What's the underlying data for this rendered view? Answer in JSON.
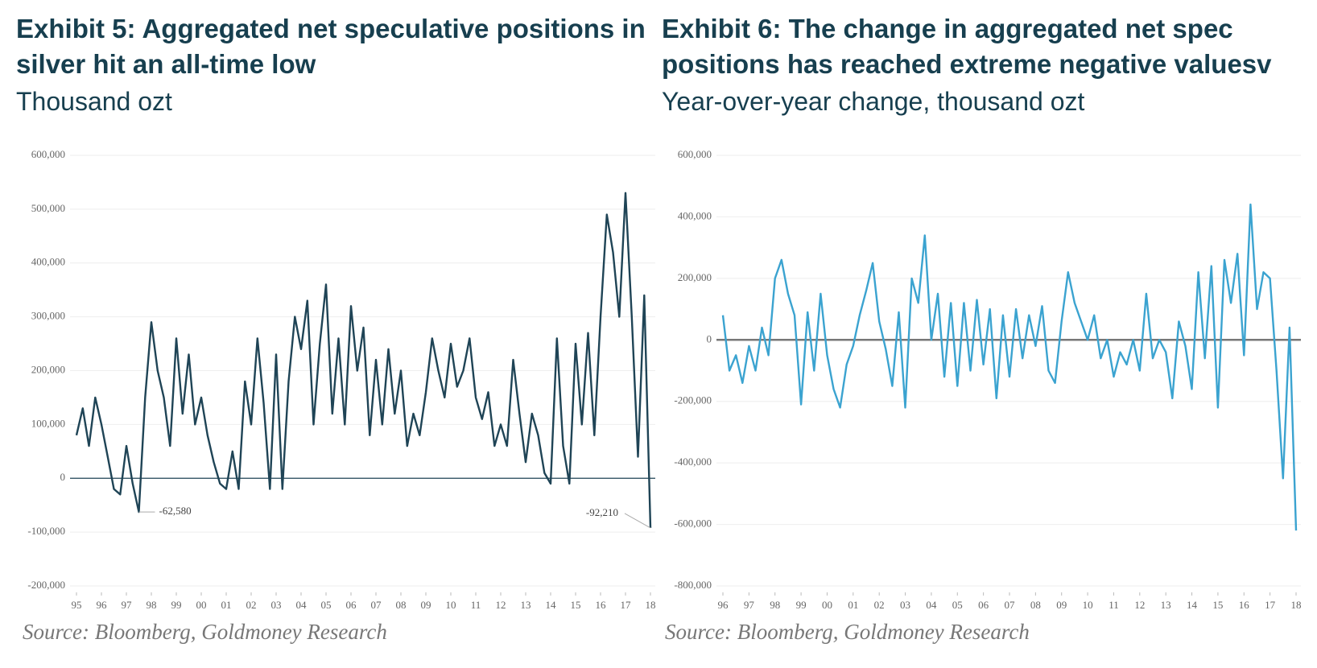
{
  "chart_data": [
    {
      "type": "line",
      "title": "Exhibit 5: Aggregated net speculative positions in silver hit an all-time low",
      "subtitle": "Thousand ozt",
      "source": "Source: Bloomberg, Goldmoney Research",
      "x": [
        1995,
        1995.25,
        1995.5,
        1995.75,
        1996,
        1996.25,
        1996.5,
        1996.75,
        1997,
        1997.25,
        1997.5,
        1997.75,
        1998,
        1998.25,
        1998.5,
        1998.75,
        1999,
        1999.25,
        1999.5,
        1999.75,
        2000,
        2000.25,
        2000.5,
        2000.75,
        2001,
        2001.25,
        2001.5,
        2001.75,
        2002,
        2002.25,
        2002.5,
        2002.75,
        2003,
        2003.25,
        2003.5,
        2003.75,
        2004,
        2004.25,
        2004.5,
        2004.75,
        2005,
        2005.25,
        2005.5,
        2005.75,
        2006,
        2006.25,
        2006.5,
        2006.75,
        2007,
        2007.25,
        2007.5,
        2007.75,
        2008,
        2008.25,
        2008.5,
        2008.75,
        2009,
        2009.25,
        2009.5,
        2009.75,
        2010,
        2010.25,
        2010.5,
        2010.75,
        2011,
        2011.25,
        2011.5,
        2011.75,
        2012,
        2012.25,
        2012.5,
        2012.75,
        2013,
        2013.25,
        2013.5,
        2013.75,
        2014,
        2014.25,
        2014.5,
        2014.75,
        2015,
        2015.25,
        2015.5,
        2015.75,
        2016,
        2016.25,
        2016.5,
        2016.75,
        2017,
        2017.25,
        2017.5,
        2017.75,
        2018
      ],
      "series": [
        {
          "color": "#1f4456",
          "values": [
            80000,
            130000,
            60000,
            150000,
            100000,
            40000,
            -20000,
            -30000,
            60000,
            -10000,
            -62580,
            150000,
            290000,
            200000,
            150000,
            60000,
            260000,
            120000,
            230000,
            100000,
            150000,
            80000,
            30000,
            -10000,
            -20000,
            50000,
            -20000,
            180000,
            100000,
            260000,
            140000,
            -20000,
            230000,
            -20000,
            180000,
            300000,
            240000,
            330000,
            100000,
            250000,
            360000,
            120000,
            260000,
            100000,
            320000,
            200000,
            280000,
            80000,
            220000,
            100000,
            240000,
            120000,
            200000,
            60000,
            120000,
            80000,
            160000,
            260000,
            200000,
            150000,
            250000,
            170000,
            200000,
            260000,
            150000,
            110000,
            160000,
            60000,
            100000,
            60000,
            220000,
            120000,
            30000,
            120000,
            80000,
            10000,
            -10000,
            260000,
            60000,
            -10000,
            250000,
            100000,
            270000,
            80000,
            300000,
            490000,
            420000,
            300000,
            530000,
            300000,
            40000,
            340000,
            -92210
          ]
        }
      ],
      "annotations": [
        {
          "label": "-62,580",
          "x": 1997.5,
          "y": -62580
        },
        {
          "label": "-92,210",
          "x": 2018,
          "y": -92210
        }
      ],
      "xlim": [
        1995,
        2018
      ],
      "xticks": [
        {
          "value": 1995,
          "label": "95"
        },
        {
          "value": 1996,
          "label": "96"
        },
        {
          "value": 1997,
          "label": "97"
        },
        {
          "value": 1998,
          "label": "98"
        },
        {
          "value": 1999,
          "label": "99"
        },
        {
          "value": 2000,
          "label": "00"
        },
        {
          "value": 2001,
          "label": "01"
        },
        {
          "value": 2002,
          "label": "02"
        },
        {
          "value": 2003,
          "label": "03"
        },
        {
          "value": 2004,
          "label": "04"
        },
        {
          "value": 2005,
          "label": "05"
        },
        {
          "value": 2006,
          "label": "06"
        },
        {
          "value": 2007,
          "label": "07"
        },
        {
          "value": 2008,
          "label": "08"
        },
        {
          "value": 2009,
          "label": "09"
        },
        {
          "value": 2010,
          "label": "10"
        },
        {
          "value": 2011,
          "label": "11"
        },
        {
          "value": 2012,
          "label": "12"
        },
        {
          "value": 2013,
          "label": "13"
        },
        {
          "value": 2014,
          "label": "14"
        },
        {
          "value": 2015,
          "label": "15"
        },
        {
          "value": 2016,
          "label": "16"
        },
        {
          "value": 2017,
          "label": "17"
        },
        {
          "value": 2018,
          "label": "18"
        }
      ],
      "ylim": [
        -200000,
        600000
      ],
      "yticks": [
        {
          "value": -200000,
          "label": "-200,000"
        },
        {
          "value": -100000,
          "label": "-100,000"
        },
        0,
        {
          "value": 100000,
          "label": "100,000"
        },
        {
          "value": 200000,
          "label": "200,000"
        },
        {
          "value": 300000,
          "label": "300,000"
        },
        {
          "value": 400000,
          "label": "400,000"
        },
        {
          "value": 500000,
          "label": "500,000"
        },
        {
          "value": 600000,
          "label": "600,000"
        }
      ],
      "grid": true
    },
    {
      "type": "line",
      "title": "Exhibit 6: The change in aggregated net spec positions has reached extreme negative valuesv",
      "subtitle": "Year-over-year change, thousand ozt",
      "source": "Source: Bloomberg, Goldmoney Research",
      "x": [
        1996,
        1996.25,
        1996.5,
        1996.75,
        1997,
        1997.25,
        1997.5,
        1997.75,
        1998,
        1998.25,
        1998.5,
        1998.75,
        1999,
        1999.25,
        1999.5,
        1999.75,
        2000,
        2000.25,
        2000.5,
        2000.75,
        2001,
        2001.25,
        2001.5,
        2001.75,
        2002,
        2002.25,
        2002.5,
        2002.75,
        2003,
        2003.25,
        2003.5,
        2003.75,
        2004,
        2004.25,
        2004.5,
        2004.75,
        2005,
        2005.25,
        2005.5,
        2005.75,
        2006,
        2006.25,
        2006.5,
        2006.75,
        2007,
        2007.25,
        2007.5,
        2007.75,
        2008,
        2008.25,
        2008.5,
        2008.75,
        2009,
        2009.25,
        2009.5,
        2009.75,
        2010,
        2010.25,
        2010.5,
        2010.75,
        2011,
        2011.25,
        2011.5,
        2011.75,
        2012,
        2012.25,
        2012.5,
        2012.75,
        2013,
        2013.25,
        2013.5,
        2013.75,
        2014,
        2014.25,
        2014.5,
        2014.75,
        2015,
        2015.25,
        2015.5,
        2015.75,
        2016,
        2016.25,
        2016.5,
        2016.75,
        2017,
        2017.25,
        2017.5,
        2017.75,
        2018
      ],
      "series": [
        {
          "color": "#3ba3d0",
          "values": [
            80000,
            -100000,
            -50000,
            -140000,
            -20000,
            -100000,
            40000,
            -50000,
            200000,
            260000,
            150000,
            80000,
            -210000,
            90000,
            -100000,
            150000,
            -50000,
            -160000,
            -220000,
            -80000,
            -20000,
            80000,
            160000,
            250000,
            60000,
            -30000,
            -150000,
            90000,
            -220000,
            200000,
            120000,
            340000,
            0,
            150000,
            -120000,
            120000,
            -150000,
            120000,
            -100000,
            130000,
            -80000,
            100000,
            -190000,
            80000,
            -120000,
            100000,
            -60000,
            80000,
            -20000,
            110000,
            -100000,
            -140000,
            60000,
            220000,
            120000,
            60000,
            0,
            80000,
            -60000,
            0,
            -120000,
            -40000,
            -80000,
            0,
            -100000,
            150000,
            -60000,
            0,
            -40000,
            -190000,
            60000,
            -20000,
            -160000,
            220000,
            -60000,
            240000,
            -220000,
            260000,
            120000,
            280000,
            -50000,
            440000,
            100000,
            220000,
            200000,
            -100000,
            -450000,
            40000,
            -620000
          ]
        }
      ],
      "xlim": [
        1996,
        2018
      ],
      "xticks": [
        {
          "value": 1996,
          "label": "96"
        },
        {
          "value": 1997,
          "label": "97"
        },
        {
          "value": 1998,
          "label": "98"
        },
        {
          "value": 1999,
          "label": "99"
        },
        {
          "value": 2000,
          "label": "00"
        },
        {
          "value": 2001,
          "label": "01"
        },
        {
          "value": 2002,
          "label": "02"
        },
        {
          "value": 2003,
          "label": "03"
        },
        {
          "value": 2004,
          "label": "04"
        },
        {
          "value": 2005,
          "label": "05"
        },
        {
          "value": 2006,
          "label": "06"
        },
        {
          "value": 2007,
          "label": "07"
        },
        {
          "value": 2008,
          "label": "08"
        },
        {
          "value": 2009,
          "label": "09"
        },
        {
          "value": 2010,
          "label": "10"
        },
        {
          "value": 2011,
          "label": "11"
        },
        {
          "value": 2012,
          "label": "12"
        },
        {
          "value": 2013,
          "label": "13"
        },
        {
          "value": 2014,
          "label": "14"
        },
        {
          "value": 2015,
          "label": "15"
        },
        {
          "value": 2016,
          "label": "16"
        },
        {
          "value": 2017,
          "label": "17"
        },
        {
          "value": 2018,
          "label": "18"
        }
      ],
      "ylim": [
        -800000,
        600000
      ],
      "yticks": [
        {
          "value": -800000,
          "label": "-800,000"
        },
        {
          "value": -600000,
          "label": "-600,000"
        },
        {
          "value": -400000,
          "label": "-400,000"
        },
        {
          "value": -200000,
          "label": "-200,000"
        },
        0,
        {
          "value": 200000,
          "label": "200,000"
        },
        {
          "value": 400000,
          "label": "400,000"
        },
        {
          "value": 600000,
          "label": "600,000"
        }
      ],
      "grid": true
    }
  ]
}
